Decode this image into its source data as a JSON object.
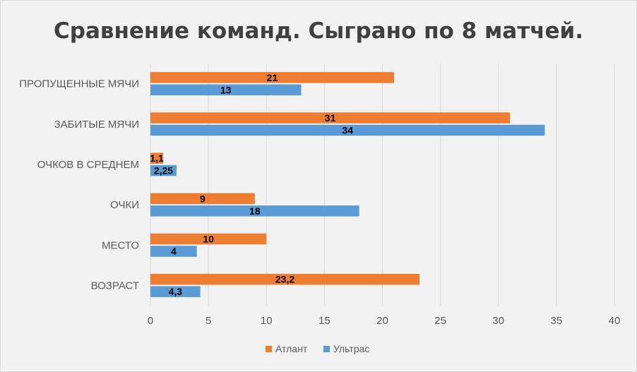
{
  "chart_data": {
    "type": "bar",
    "orientation": "horizontal",
    "title": "Сравнение команд. Сыграно по 8 матчей.",
    "categories": [
      "ПРОПУЩЕННЫЕ МЯЧИ",
      "ЗАБИТЫЕ МЯЧИ",
      "ОЧКОВ В СРЕДНЕМ",
      "ОЧКИ",
      "МЕСТО",
      "ВОЗРАСТ"
    ],
    "series": [
      {
        "name": "Атлант",
        "color": "#ED7D31",
        "values": [
          21,
          31,
          1.1,
          9,
          10,
          23.2
        ],
        "labels": [
          "21",
          "31",
          "1,1",
          "9",
          "10",
          "23,2"
        ]
      },
      {
        "name": "Ультрас",
        "color": "#5B9BD5",
        "values": [
          13,
          34,
          2.25,
          18,
          4,
          4.3
        ],
        "labels": [
          "13",
          "34",
          "2,25",
          "18",
          "4",
          "4,3"
        ]
      }
    ],
    "xlim": [
      0,
      40
    ],
    "xticks": [
      0,
      5,
      10,
      15,
      20,
      25,
      30,
      35,
      40
    ],
    "xlabel": "",
    "ylabel": "",
    "grid": true,
    "legend_position": "bottom"
  }
}
